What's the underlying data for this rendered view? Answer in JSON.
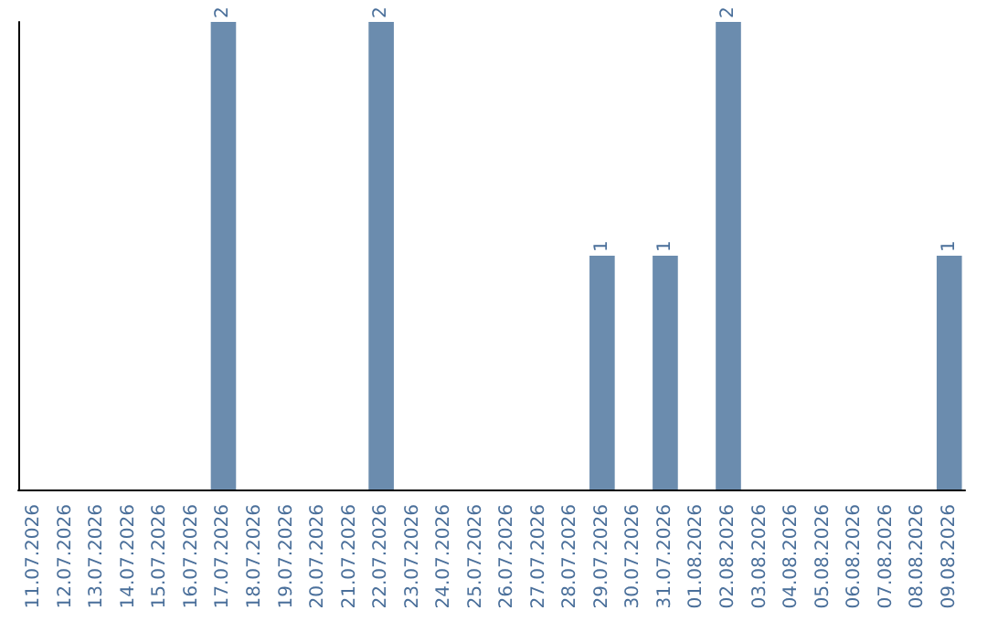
{
  "chart_data": {
    "type": "bar",
    "categories": [
      "11.07.2026",
      "12.07.2026",
      "13.07.2026",
      "14.07.2026",
      "15.07.2026",
      "16.07.2026",
      "17.07.2026",
      "18.07.2026",
      "19.07.2026",
      "20.07.2026",
      "21.07.2026",
      "22.07.2026",
      "23.07.2026",
      "24.07.2026",
      "25.07.2026",
      "26.07.2026",
      "27.07.2026",
      "28.07.2026",
      "29.07.2026",
      "30.07.2026",
      "31.07.2026",
      "01.08.2026",
      "02.08.2026",
      "03.08.2026",
      "04.08.2026",
      "05.08.2026",
      "06.08.2026",
      "07.08.2026",
      "08.08.2026",
      "09.08.2026"
    ],
    "values": [
      0,
      0,
      0,
      0,
      0,
      0,
      2,
      0,
      0,
      0,
      0,
      2,
      0,
      0,
      0,
      0,
      0,
      0,
      1,
      0,
      1,
      0,
      2,
      0,
      0,
      0,
      0,
      0,
      0,
      1
    ],
    "value_labels": [
      null,
      null,
      null,
      null,
      null,
      null,
      "2",
      null,
      null,
      null,
      null,
      "2",
      null,
      null,
      null,
      null,
      null,
      null,
      "1",
      null,
      "1",
      null,
      "2",
      null,
      null,
      null,
      null,
      null,
      null,
      "1"
    ],
    "color": "#6b8cae",
    "tick_labels": "x"
  }
}
